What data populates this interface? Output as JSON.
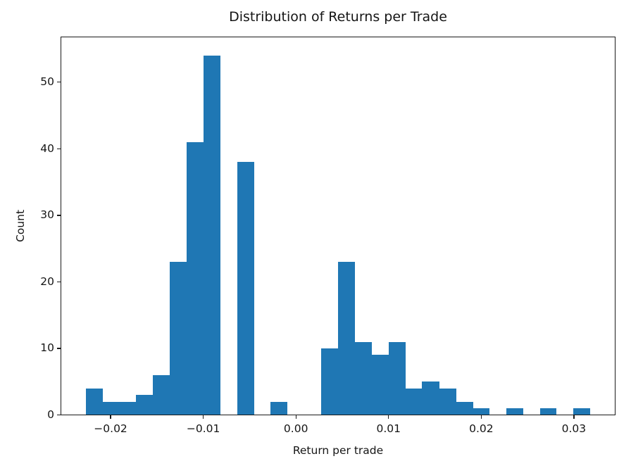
{
  "chart_data": {
    "type": "bar",
    "subtype": "histogram",
    "title": "Distribution of Returns per Trade",
    "xlabel": "Return per trade",
    "ylabel": "Count",
    "bar_color": "#1f77b4",
    "axis_color": "#1a1a1a",
    "grid": "off",
    "legend": "none",
    "bins": {
      "start": -0.02268,
      "width": 0.001815
    },
    "counts": [
      4,
      2,
      2,
      3,
      6,
      23,
      41,
      54,
      0,
      38,
      0,
      2,
      0,
      0,
      10,
      23,
      11,
      9,
      11,
      4,
      5,
      4,
      2,
      1,
      0,
      1,
      0,
      1,
      0,
      1
    ],
    "xlim": [
      -0.0254,
      0.03449
    ],
    "ylim": [
      0,
      56.85
    ],
    "xtick_values": [
      -0.02,
      -0.01,
      0.0,
      0.01,
      0.02,
      0.03
    ],
    "xtick_labels": [
      "−0.02",
      "−0.01",
      "0.00",
      "0.01",
      "0.02",
      "0.03"
    ],
    "ytick_values": [
      0,
      10,
      20,
      30,
      40,
      50
    ],
    "ytick_labels": [
      "0",
      "10",
      "20",
      "30",
      "40",
      "50"
    ]
  }
}
